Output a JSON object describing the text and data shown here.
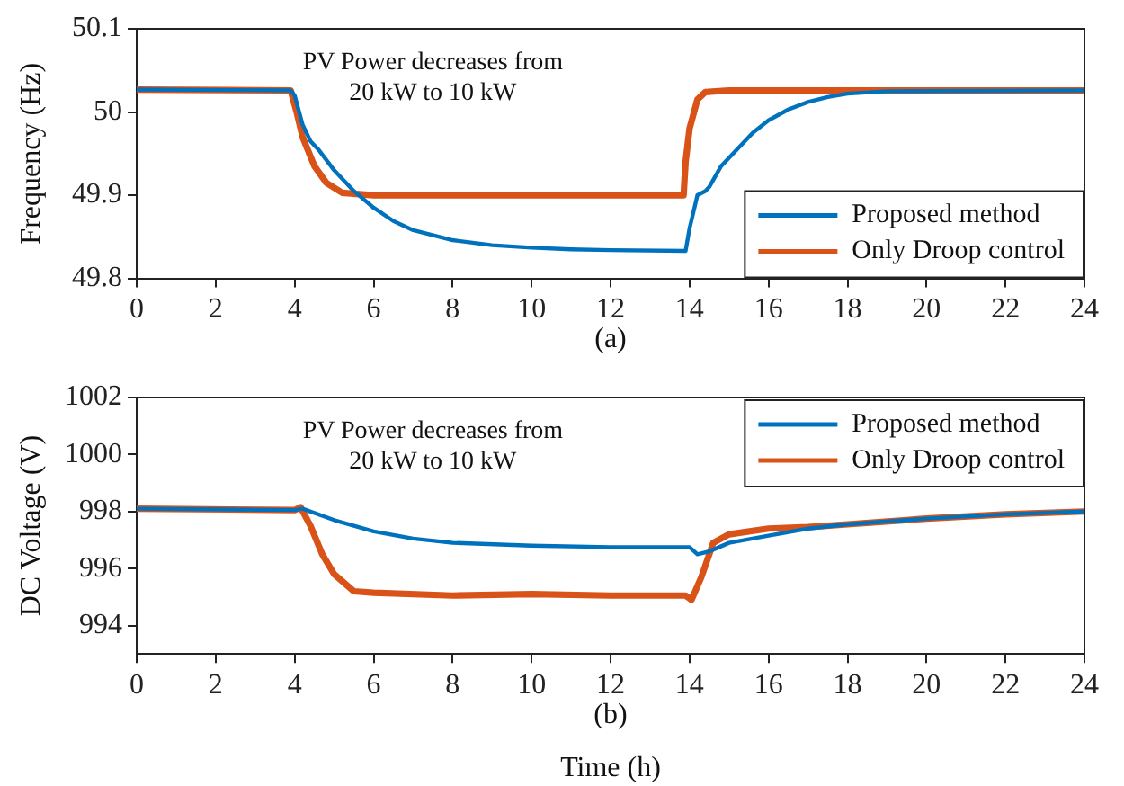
{
  "chart_data": [
    {
      "type": "line",
      "ylabel": "Frequency (Hz)",
      "xlim": [
        0,
        24
      ],
      "xticks": [
        0,
        2,
        4,
        6,
        8,
        10,
        12,
        14,
        16,
        18,
        20,
        22,
        24
      ],
      "ylim": [
        49.8,
        50.1
      ],
      "yticks": [
        49.8,
        49.9,
        50,
        50.1
      ],
      "grid": false,
      "legend": "bottom right",
      "marker": "none",
      "line_style": "solid",
      "annotations": [
        "PV Power decreases from\n20 kW to 10 kW",
        "(a)"
      ],
      "series": [
        {
          "name": "Proposed method",
          "color": "#0072bd",
          "x": [
            0,
            3.9,
            4.0,
            4.2,
            4.4,
            4.6,
            5,
            5.5,
            6,
            6.5,
            7,
            8,
            9,
            10,
            11,
            12,
            13.9,
            14.0,
            14.2,
            14.4,
            14.5,
            14.8,
            15.2,
            15.6,
            16,
            16.5,
            17,
            17.5,
            18,
            19,
            24
          ],
          "values": [
            50.027,
            50.026,
            50.02,
            49.985,
            49.965,
            49.955,
            49.93,
            49.905,
            49.885,
            49.869,
            49.858,
            49.846,
            49.84,
            49.837,
            49.835,
            49.834,
            49.833,
            49.86,
            49.9,
            49.905,
            49.91,
            49.935,
            49.955,
            49.975,
            49.99,
            50.003,
            50.012,
            50.018,
            50.022,
            50.025,
            50.026
          ]
        },
        {
          "name": "Only Droop control",
          "color": "#d95319",
          "x": [
            0,
            3.9,
            4.05,
            4.2,
            4.5,
            4.8,
            5.2,
            6,
            13.85,
            13.9,
            14.0,
            14.2,
            14.4,
            15,
            24
          ],
          "values": [
            50.027,
            50.026,
            50.0,
            49.97,
            49.935,
            49.915,
            49.903,
            49.9,
            49.9,
            49.94,
            49.98,
            50.015,
            50.024,
            50.026,
            50.026
          ]
        }
      ]
    },
    {
      "type": "line",
      "xlabel": "Time (h)",
      "ylabel": "DC Voltage (V)",
      "xlim": [
        0,
        24
      ],
      "xticks": [
        0,
        2,
        4,
        6,
        8,
        10,
        12,
        14,
        16,
        18,
        20,
        22,
        24
      ],
      "ylim": [
        993,
        1002
      ],
      "yticks": [
        994,
        996,
        998,
        1000,
        1002
      ],
      "grid": false,
      "legend": "top right",
      "marker": "none",
      "line_style": "solid",
      "annotations": [
        "PV Power decreases from\n20 kW to 10 kW",
        "(b)"
      ],
      "series": [
        {
          "name": "Proposed method",
          "color": "#0072bd",
          "x": [
            0,
            4,
            4.2,
            5,
            6,
            7,
            8,
            10,
            12,
            14,
            14.2,
            14.5,
            15,
            16,
            17,
            18,
            20,
            22,
            24
          ],
          "values": [
            998.1,
            998.05,
            998.1,
            997.7,
            997.3,
            997.05,
            996.9,
            996.8,
            996.75,
            996.75,
            996.5,
            996.6,
            996.9,
            997.15,
            997.4,
            997.55,
            997.75,
            997.9,
            998.0
          ]
        },
        {
          "name": "Only Droop control",
          "color": "#d95319",
          "x": [
            0,
            4,
            4.15,
            4.4,
            4.7,
            5,
            5.5,
            6,
            8,
            10,
            12,
            13.9,
            14.05,
            14.3,
            14.6,
            15,
            16,
            17,
            18,
            20,
            22,
            24
          ],
          "values": [
            998.1,
            998.05,
            998.15,
            997.5,
            996.5,
            995.8,
            995.2,
            995.15,
            995.05,
            995.1,
            995.05,
            995.05,
            994.9,
            995.7,
            996.9,
            997.2,
            997.4,
            997.45,
            997.55,
            997.75,
            997.9,
            998.0
          ]
        }
      ]
    }
  ]
}
